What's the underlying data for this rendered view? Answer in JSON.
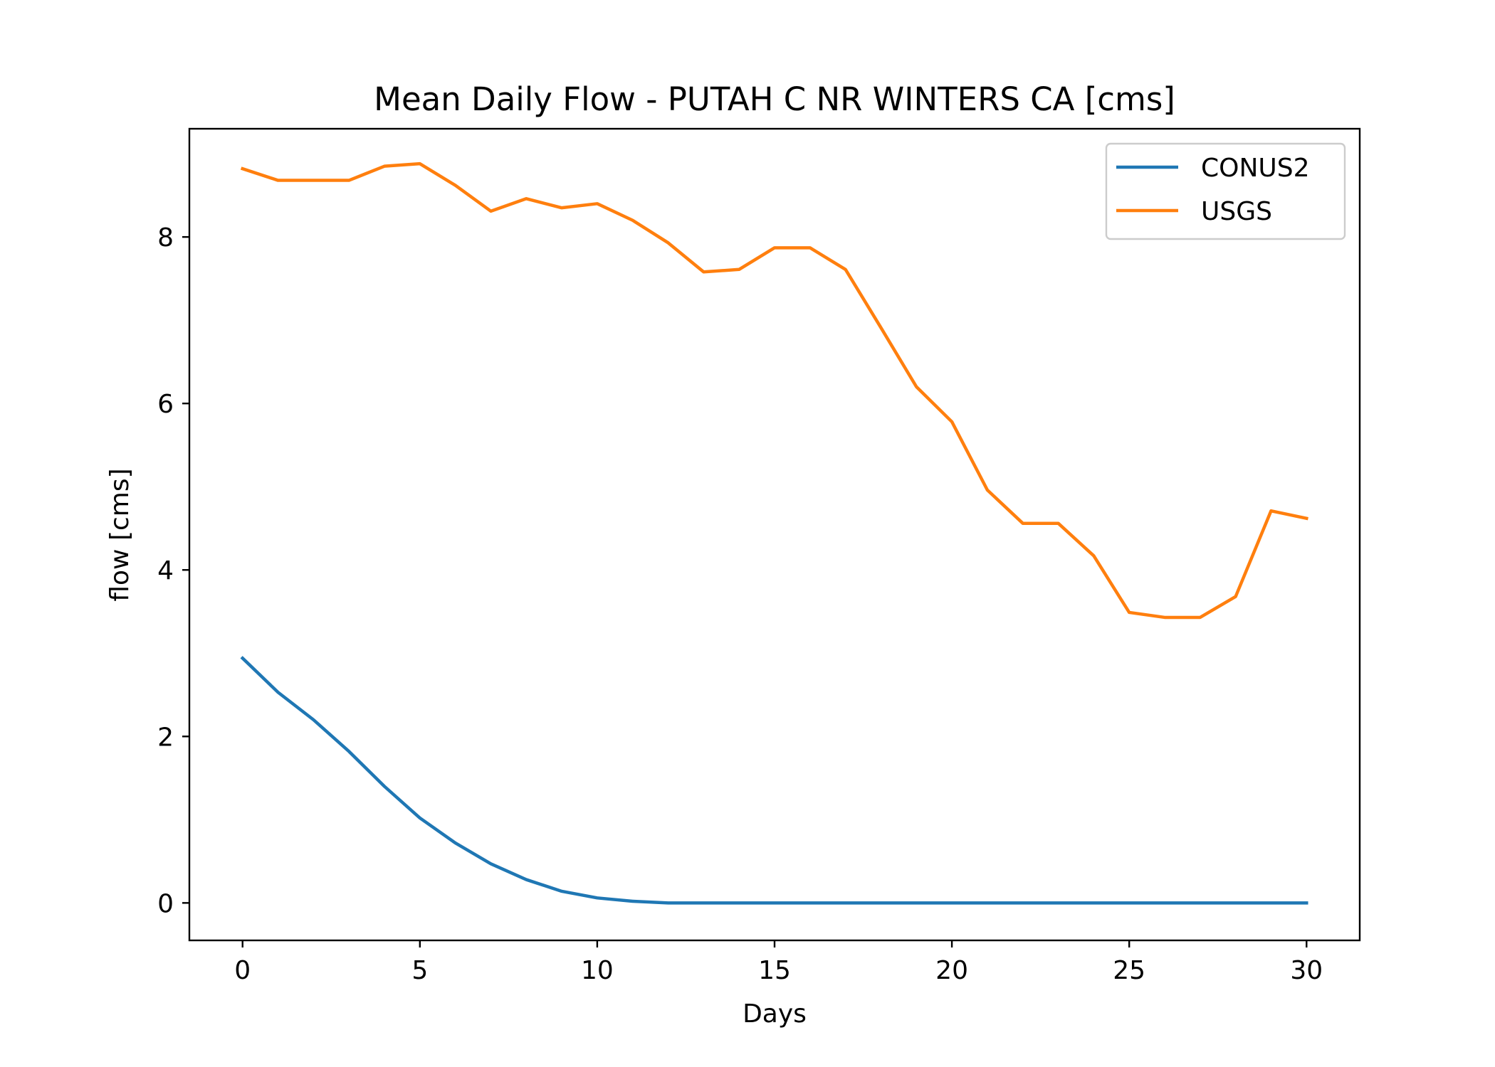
{
  "chart_data": {
    "type": "line",
    "title": "Mean Daily Flow - PUTAH C NR WINTERS CA [cms]",
    "xlabel": "Days",
    "ylabel": "flow [cms]",
    "xlim": [
      -1.5,
      31.5
    ],
    "ylim": [
      -0.45,
      9.3
    ],
    "xticks": [
      0,
      5,
      10,
      15,
      20,
      25,
      30
    ],
    "yticks": [
      0,
      2,
      4,
      6,
      8
    ],
    "grid": false,
    "legend": "top-right",
    "x": [
      0,
      1,
      2,
      3,
      4,
      5,
      6,
      7,
      8,
      9,
      10,
      11,
      12,
      13,
      14,
      15,
      16,
      17,
      18,
      19,
      20,
      21,
      22,
      23,
      24,
      25,
      26,
      27,
      28,
      29,
      30
    ],
    "series": [
      {
        "name": "CONUS2",
        "color": "#1f77b4",
        "values": [
          2.94,
          2.53,
          2.2,
          1.82,
          1.4,
          1.02,
          0.72,
          0.47,
          0.28,
          0.14,
          0.06,
          0.02,
          0.0,
          0.0,
          0.0,
          0.0,
          0.0,
          0.0,
          0.0,
          0.0,
          0.0,
          0.0,
          0.0,
          0.0,
          0.0,
          0.0,
          0.0,
          0.0,
          0.0,
          0.0,
          0.0
        ]
      },
      {
        "name": "USGS",
        "color": "#ff7f0e",
        "values": [
          8.82,
          8.68,
          8.68,
          8.68,
          8.85,
          8.88,
          8.62,
          8.31,
          8.46,
          8.35,
          8.4,
          8.2,
          7.93,
          7.58,
          7.61,
          7.87,
          7.87,
          7.61,
          6.91,
          6.2,
          5.78,
          4.96,
          4.56,
          4.56,
          4.17,
          3.49,
          3.43,
          3.43,
          3.68,
          4.71,
          4.62
        ]
      }
    ]
  }
}
